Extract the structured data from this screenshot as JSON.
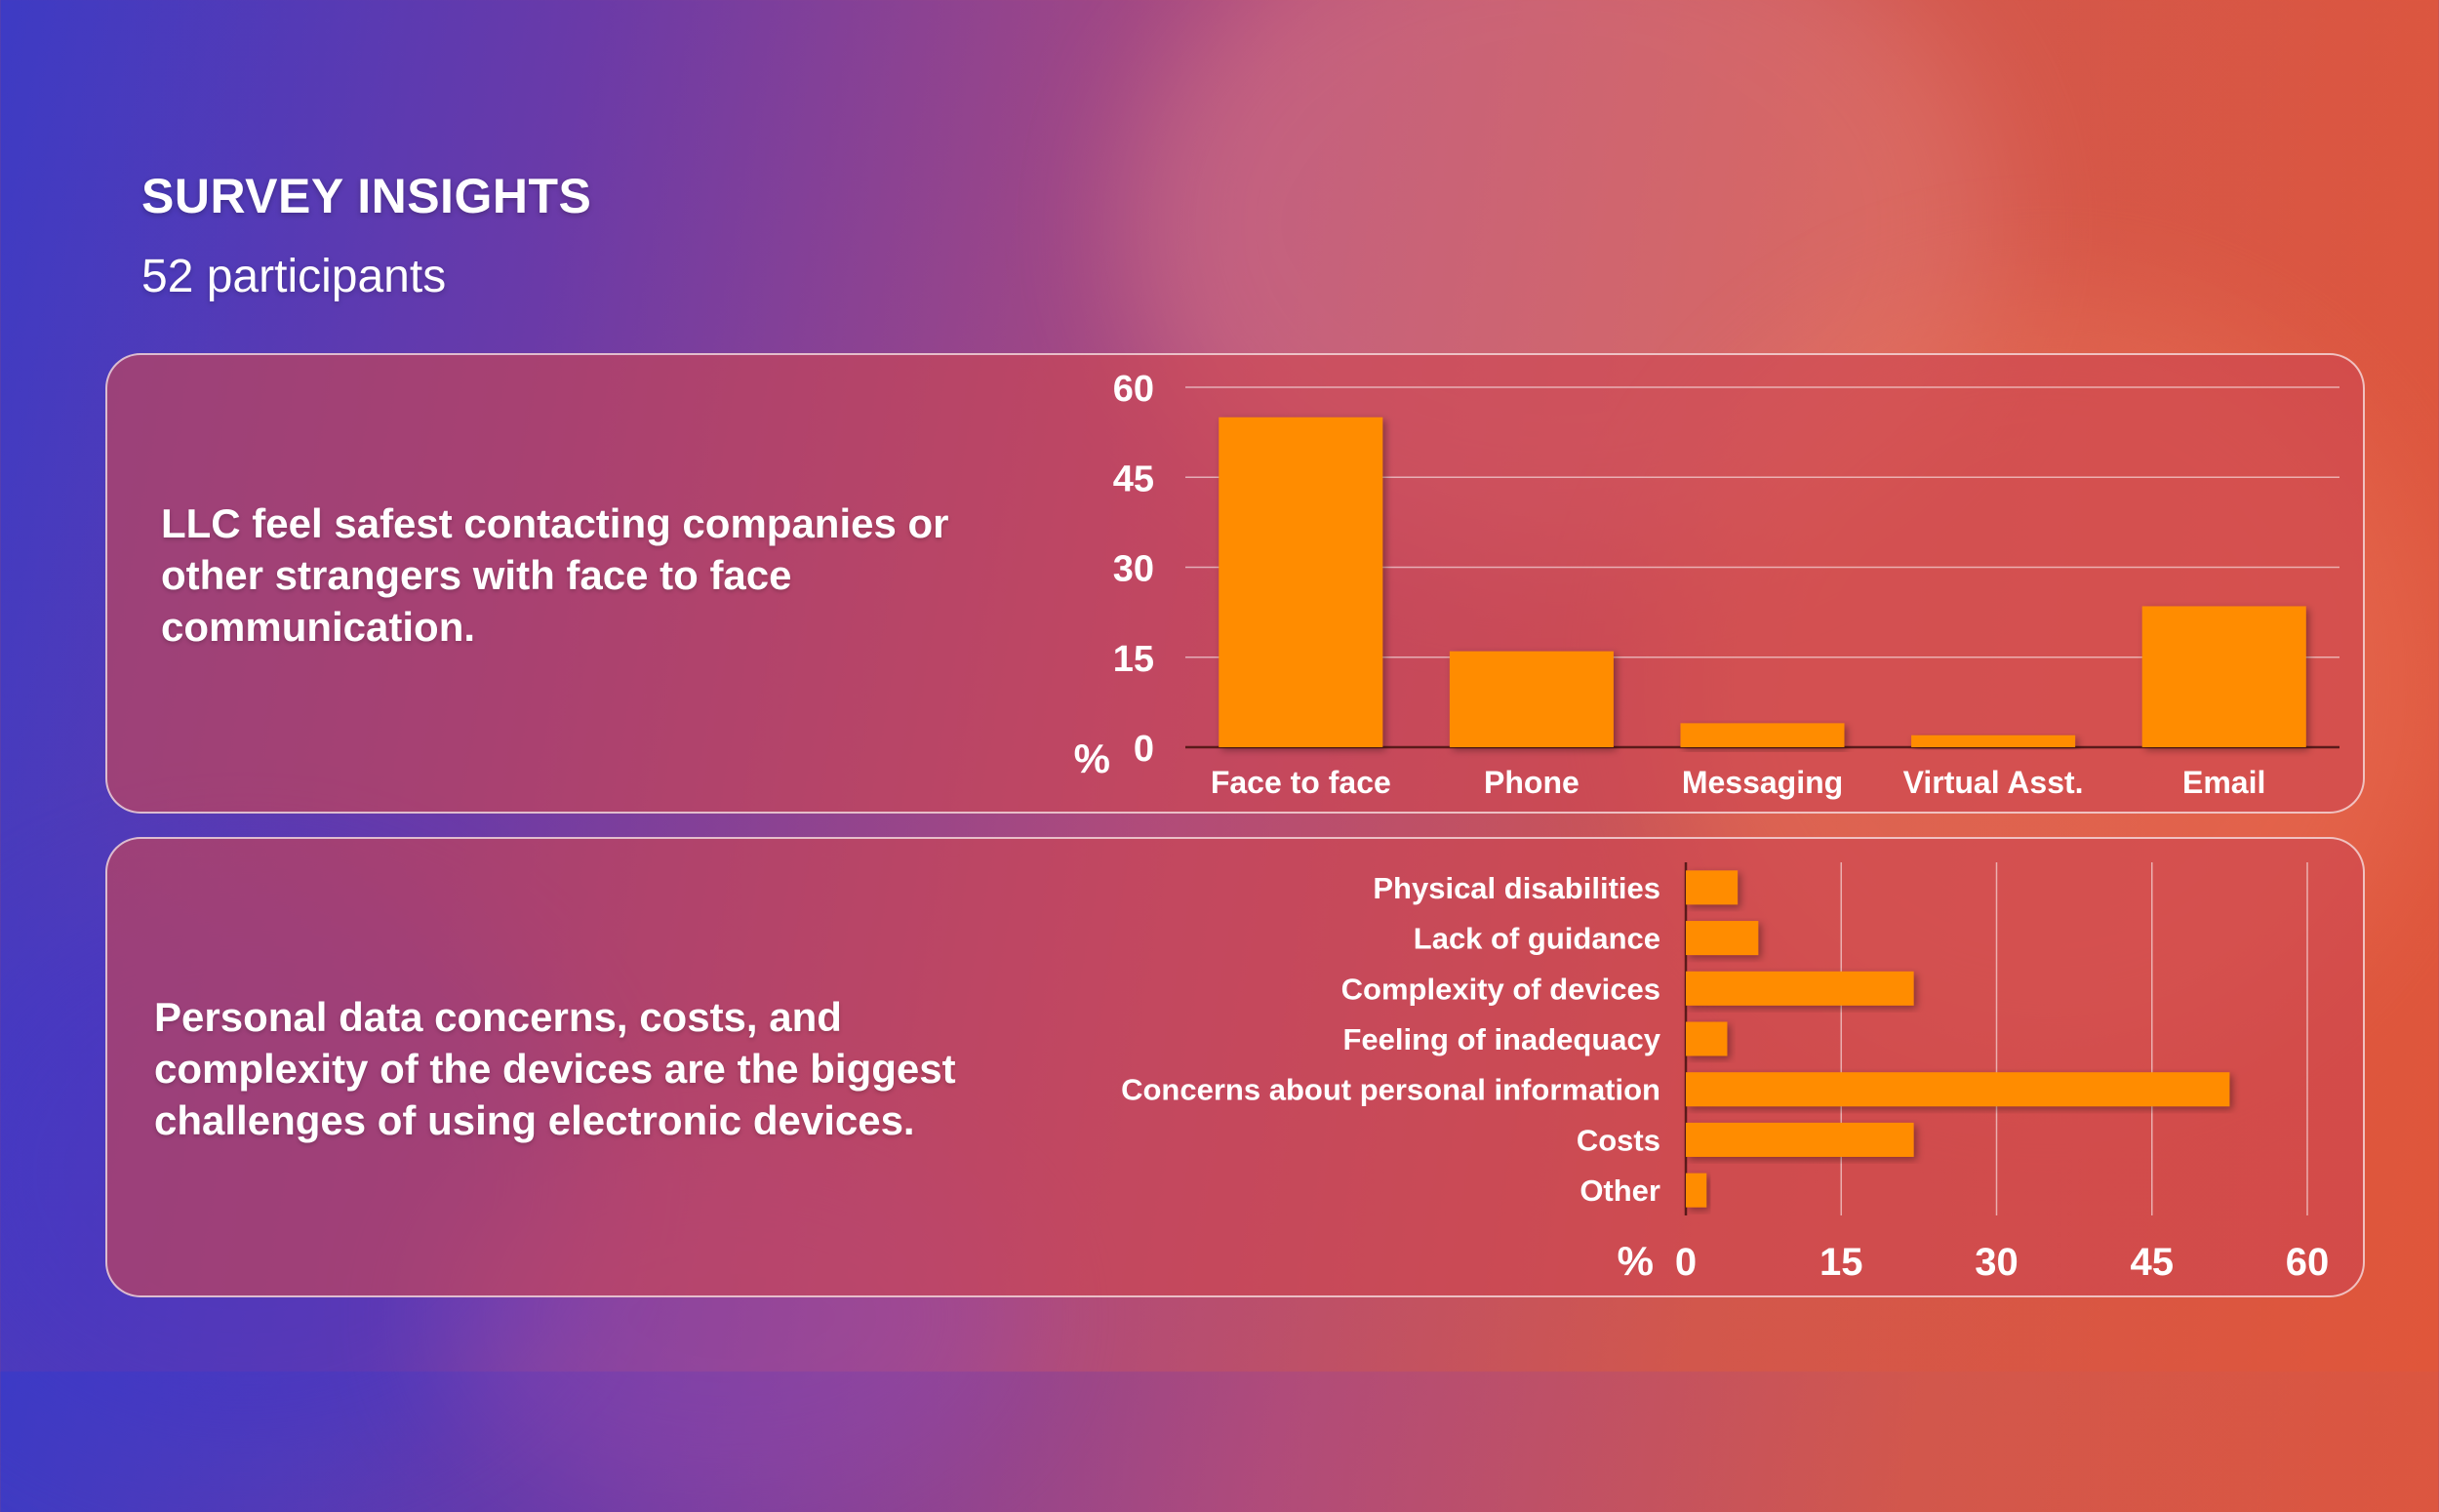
{
  "header": {
    "title": "SURVEY INSIGHTS",
    "subtitle": "52 participants"
  },
  "panel1": {
    "insight": "LLC feel safest contacting companies or other strangers with face to face communication."
  },
  "panel2": {
    "insight": "Personal data concerns, costs, and complexity of the devices are the biggest challenges of using electronic devices."
  },
  "colors": {
    "bar": "#ff8c00",
    "text": "#ffffff"
  },
  "chart_data": [
    {
      "type": "bar",
      "orientation": "vertical",
      "unit_label": "%",
      "categories": [
        "Face to face",
        "Phone",
        "Messaging",
        "Virtual Asst.",
        "Email"
      ],
      "values": [
        55,
        16,
        4,
        2,
        23.5
      ],
      "ylim": [
        0,
        60
      ],
      "yticks": [
        0,
        15,
        30,
        45,
        60
      ],
      "grid": true,
      "legend": "none"
    },
    {
      "type": "bar",
      "orientation": "horizontal",
      "unit_label": "%",
      "categories": [
        "Physical disabilities",
        "Lack of guidance",
        "Complexity of devices",
        "Feeling of inadequacy",
        "Concerns about personal information",
        "Costs",
        "Other"
      ],
      "values": [
        5,
        7,
        22,
        4,
        52.5,
        22,
        2
      ],
      "xlim": [
        0,
        60
      ],
      "xticks": [
        0,
        15,
        30,
        45,
        60
      ],
      "grid": true,
      "legend": "none"
    }
  ]
}
